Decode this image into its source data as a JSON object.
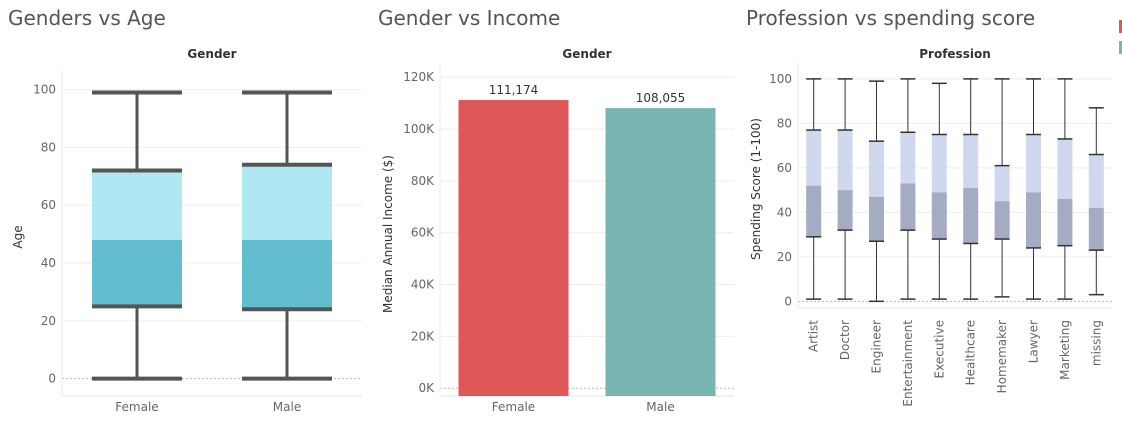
{
  "colors": {
    "female_box_upper": "#aee9f3",
    "female_box_lower": "#63bdd0",
    "whisker": "#555555",
    "female_bar": "#e05759",
    "male_bar": "#79b6b2",
    "prof_box_upper": "#cfd8ef",
    "prof_box_lower": "#a5abc3",
    "prof_whisker": "#333333",
    "legend_red": "#e05759",
    "legend_teal": "#79b6b2"
  },
  "chart_data": [
    {
      "type": "box",
      "title": "Genders vs Age",
      "header": "Gender",
      "ylabel": "Age",
      "ylim": [
        -6,
        104
      ],
      "yticks": [
        0,
        20,
        40,
        60,
        80,
        100
      ],
      "categories": [
        "Female",
        "Male"
      ],
      "boxes": [
        {
          "min": 0,
          "q1": 25,
          "median": 48,
          "q3": 72,
          "max": 99
        },
        {
          "min": 0,
          "q1": 24,
          "median": 48,
          "q3": 74,
          "max": 99
        }
      ]
    },
    {
      "type": "bar",
      "title": "Gender vs Income",
      "header": "Gender",
      "ylabel": "Median Annual Income ($)",
      "ylim": [
        -3000,
        122000
      ],
      "yticks": [
        0,
        20000,
        40000,
        60000,
        80000,
        100000,
        120000
      ],
      "ytick_labels": [
        "0K",
        "20K",
        "40K",
        "60K",
        "80K",
        "100K",
        "120K"
      ],
      "categories": [
        "Female",
        "Male"
      ],
      "values": [
        111174,
        108055
      ],
      "value_labels": [
        "111,174",
        "108,055"
      ]
    },
    {
      "type": "box",
      "title": "Profession vs spending score",
      "header": "Profession",
      "ylabel": "Spending Score (1-100)",
      "ylim": [
        -3,
        104
      ],
      "yticks": [
        0,
        20,
        40,
        60,
        80,
        100
      ],
      "categories": [
        "Artist",
        "Doctor",
        "Engineer",
        "Entertainment",
        "Executive",
        "Healthcare",
        "Homemaker",
        "Lawyer",
        "Marketing",
        "missing"
      ],
      "boxes": [
        {
          "min": 1,
          "q1": 29,
          "median": 52,
          "q3": 77,
          "max": 100
        },
        {
          "min": 1,
          "q1": 32,
          "median": 50,
          "q3": 77,
          "max": 100
        },
        {
          "min": 0,
          "q1": 27,
          "median": 47,
          "q3": 72,
          "max": 99
        },
        {
          "min": 1,
          "q1": 32,
          "median": 53,
          "q3": 76,
          "max": 100
        },
        {
          "min": 1,
          "q1": 28,
          "median": 49,
          "q3": 75,
          "max": 98
        },
        {
          "min": 1,
          "q1": 26,
          "median": 51,
          "q3": 75,
          "max": 100
        },
        {
          "min": 2,
          "q1": 28,
          "median": 45,
          "q3": 61,
          "max": 100
        },
        {
          "min": 1,
          "q1": 24,
          "median": 49,
          "q3": 75,
          "max": 100
        },
        {
          "min": 1,
          "q1": 25,
          "median": 46,
          "q3": 73,
          "max": 100
        },
        {
          "min": 3,
          "q1": 23,
          "median": 42,
          "q3": 66,
          "max": 87
        }
      ]
    }
  ]
}
